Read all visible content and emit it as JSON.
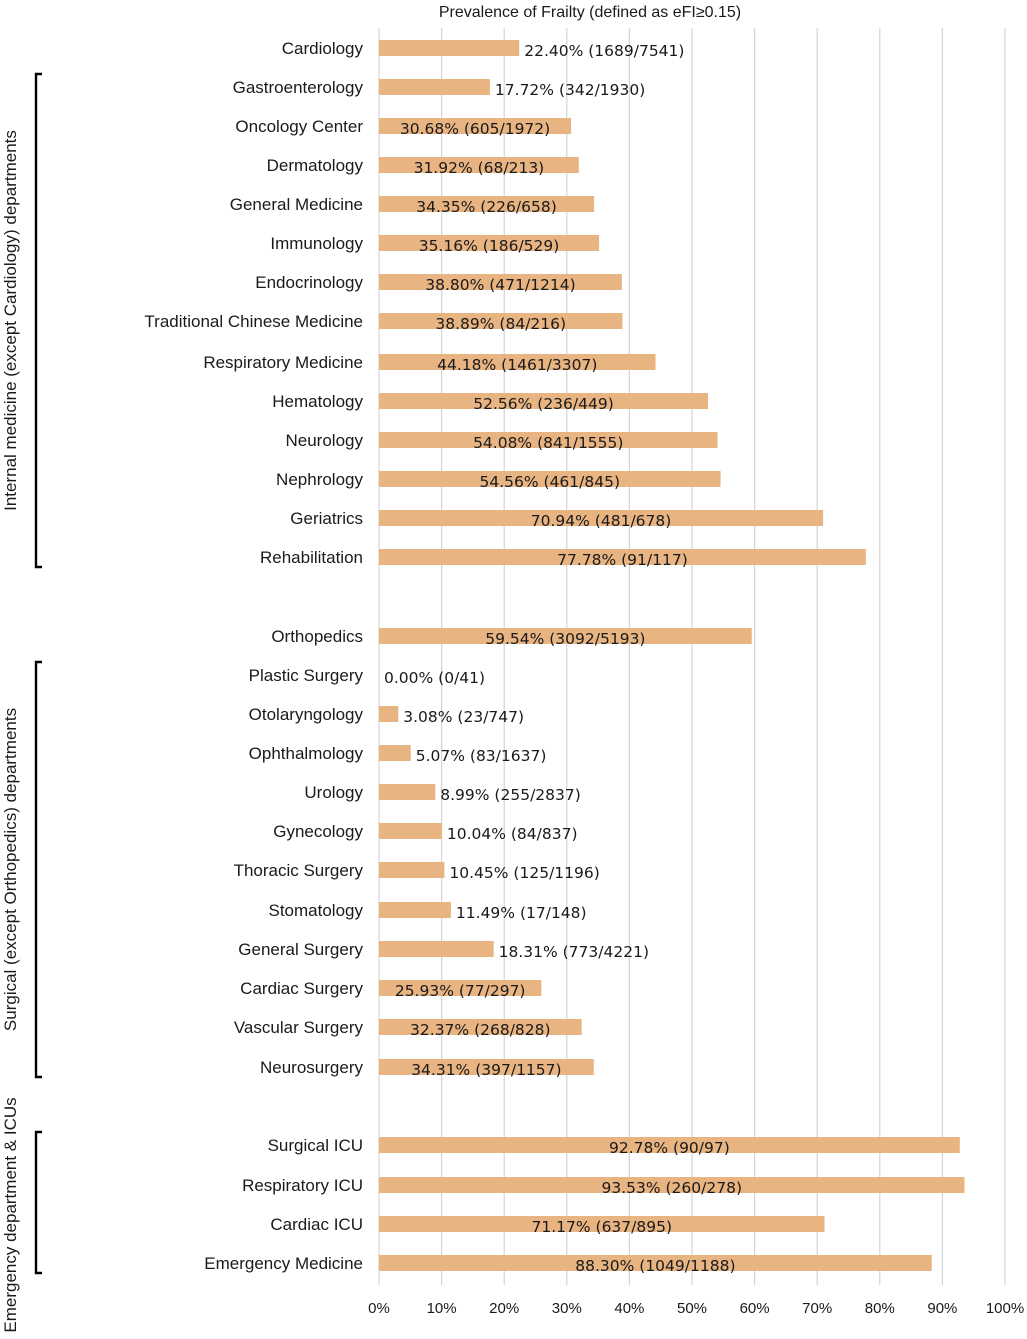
{
  "chart_data": {
    "type": "bar",
    "orientation": "horizontal",
    "title": "Prevalence of Frailty (defined as eFI≥0.15)",
    "xlim": [
      0,
      100
    ],
    "x_ticks": [
      "0%",
      "10%",
      "20%",
      "30%",
      "40%",
      "50%",
      "60%",
      "70%",
      "80%",
      "90%",
      "100%"
    ],
    "grid": true,
    "bar_color": "#e8b482",
    "grid_color": "#d4d4d4",
    "groups": [
      {
        "name": "Internal medicine (except Cardiology) departments",
        "from": "Gastroenterology",
        "to": "Rehabilitation"
      },
      {
        "name": "Surgical (except Orthopedics) departments",
        "from": "Plastic Surgery",
        "to": "Neurosurgery"
      },
      {
        "name": "Emergency department & ICUs",
        "from": "Surgical ICU",
        "to": "Emergency Medicine"
      }
    ],
    "categories": [
      {
        "name": "Cardiology",
        "value": 22.4,
        "label": "22.40% (1689/7541)"
      },
      {
        "name": "Gastroenterology",
        "value": 17.72,
        "label": "17.72% (342/1930)"
      },
      {
        "name": "Oncology Center",
        "value": 30.68,
        "label": "30.68% (605/1972)"
      },
      {
        "name": "Dermatology",
        "value": 31.92,
        "label": "31.92% (68/213)"
      },
      {
        "name": "General Medicine",
        "value": 34.35,
        "label": "34.35% (226/658)"
      },
      {
        "name": "Immunology",
        "value": 35.16,
        "label": "35.16% (186/529)"
      },
      {
        "name": "Endocrinology",
        "value": 38.8,
        "label": "38.80% (471/1214)"
      },
      {
        "name": "Traditional Chinese Medicine",
        "value": 38.89,
        "label": "38.89% (84/216)"
      },
      {
        "name": "Respiratory Medicine",
        "value": 44.18,
        "label": "44.18% (1461/3307)"
      },
      {
        "name": "Hematology",
        "value": 52.56,
        "label": "52.56% (236/449)"
      },
      {
        "name": "Neurology",
        "value": 54.08,
        "label": "54.08% (841/1555)"
      },
      {
        "name": "Nephrology",
        "value": 54.56,
        "label": "54.56% (461/845)"
      },
      {
        "name": "Geriatrics",
        "value": 70.94,
        "label": "70.94% (481/678)"
      },
      {
        "name": "Rehabilitation",
        "value": 77.78,
        "label": "77.78% (91/117)"
      },
      {
        "name": "Orthopedics",
        "value": 59.54,
        "label": "59.54% (3092/5193)"
      },
      {
        "name": "Plastic Surgery",
        "value": 0.0,
        "label": "0.00% (0/41)"
      },
      {
        "name": "Otolaryngology",
        "value": 3.08,
        "label": "3.08% (23/747)"
      },
      {
        "name": "Ophthalmology",
        "value": 5.07,
        "label": "5.07% (83/1637)"
      },
      {
        "name": "Urology",
        "value": 8.99,
        "label": "8.99% (255/2837)"
      },
      {
        "name": "Gynecology",
        "value": 10.04,
        "label": "10.04% (84/837)"
      },
      {
        "name": "Thoracic Surgery",
        "value": 10.45,
        "label": "10.45% (125/1196)"
      },
      {
        "name": "Stomatology",
        "value": 11.49,
        "label": "11.49% (17/148)"
      },
      {
        "name": "General Surgery",
        "value": 18.31,
        "label": "18.31% (773/4221)"
      },
      {
        "name": "Cardiac Surgery",
        "value": 25.93,
        "label": "25.93% (77/297)"
      },
      {
        "name": "Vascular Surgery",
        "value": 32.37,
        "label": "32.37% (268/828)"
      },
      {
        "name": "Neurosurgery",
        "value": 34.31,
        "label": "34.31% (397/1157)"
      },
      {
        "name": "Surgical ICU",
        "value": 92.78,
        "label": "92.78% (90/97)"
      },
      {
        "name": "Respiratory ICU",
        "value": 93.53,
        "label": "93.53% (260/278)"
      },
      {
        "name": "Cardiac ICU",
        "value": 71.17,
        "label": "71.17% (637/895)"
      },
      {
        "name": "Emergency Medicine",
        "value": 88.3,
        "label": "88.30% (1049/1188)"
      }
    ]
  }
}
